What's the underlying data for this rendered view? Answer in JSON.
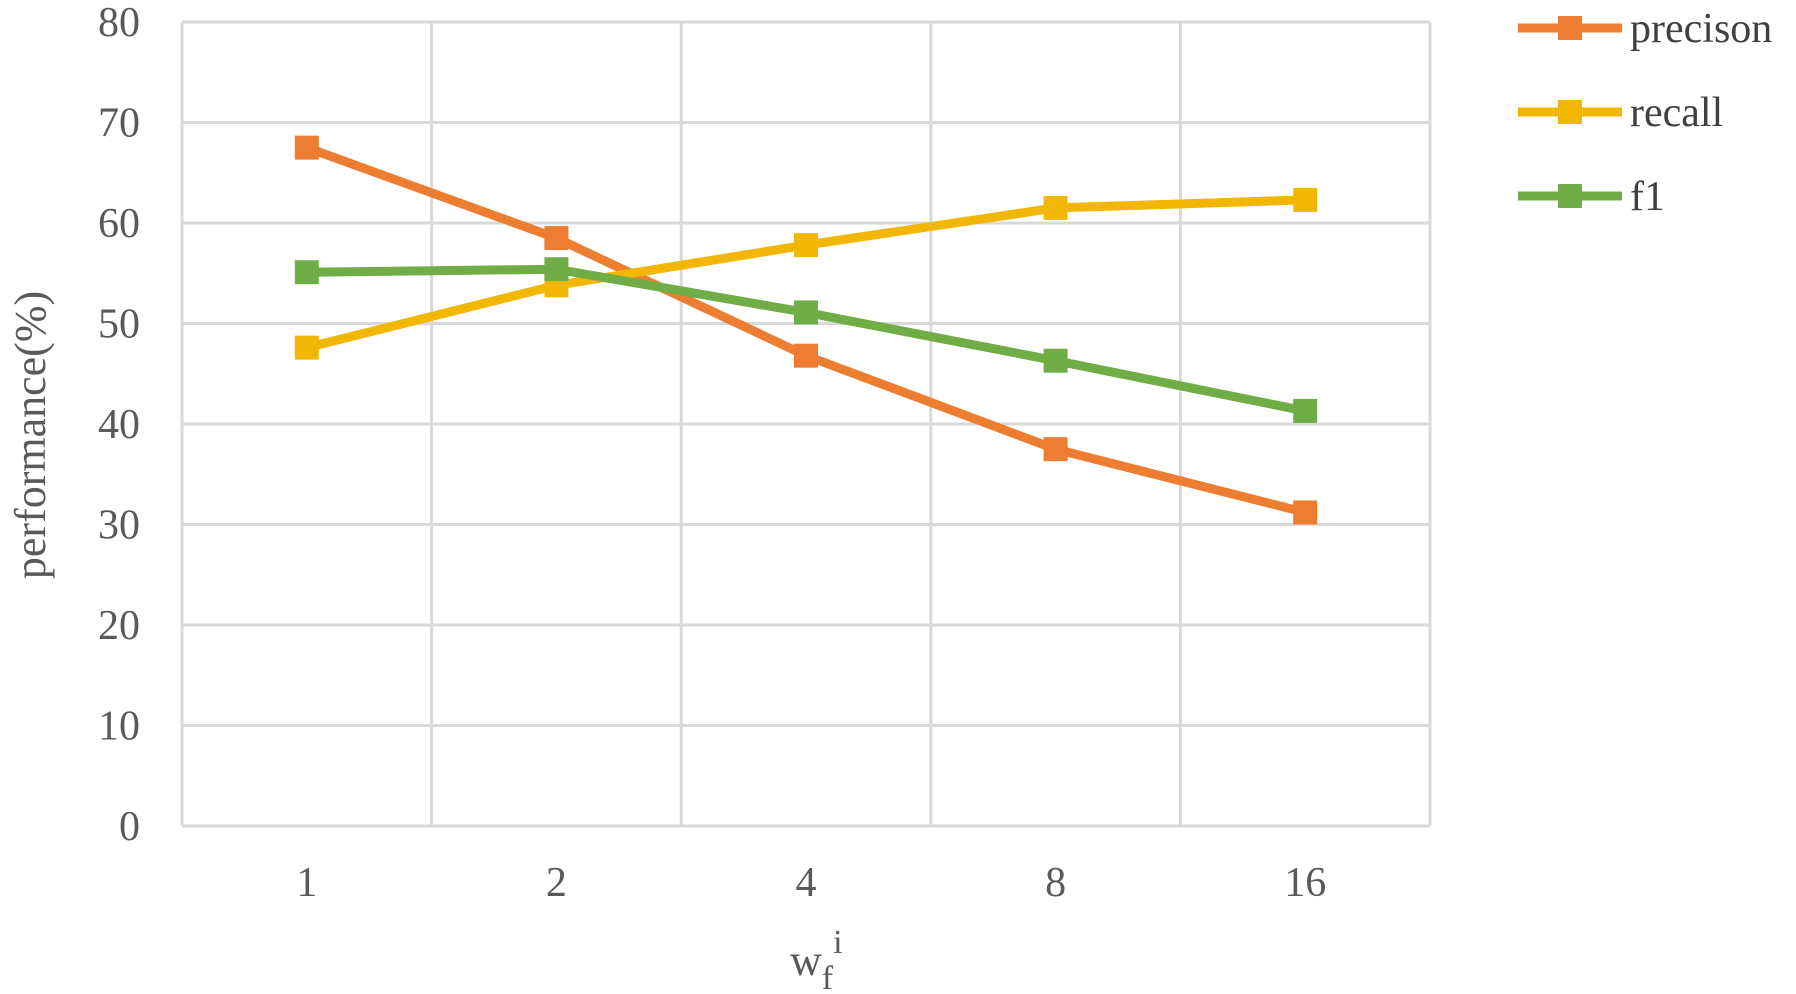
{
  "chart_data": {
    "type": "line",
    "title": "",
    "xlabel": "w",
    "xlabel_sub": "f",
    "xlabel_sup": "i",
    "ylabel": "performance(%)",
    "categories": [
      "1",
      "2",
      "4",
      "8",
      "16"
    ],
    "ylim": [
      0,
      80
    ],
    "yticks": [
      "0",
      "10",
      "20",
      "30",
      "40",
      "50",
      "60",
      "70",
      "80"
    ],
    "grid": true,
    "legend_position": "top-right",
    "series": [
      {
        "name": "precison",
        "color": "#ED7D31",
        "values": [
          67.5,
          58.5,
          46.8,
          37.5,
          31.2
        ]
      },
      {
        "name": "recall",
        "color": "#F2B705",
        "values": [
          47.6,
          53.8,
          57.8,
          61.5,
          62.3
        ]
      },
      {
        "name": "f1",
        "color": "#70AD47",
        "values": [
          55.1,
          55.4,
          51.1,
          46.3,
          41.3
        ]
      }
    ]
  }
}
